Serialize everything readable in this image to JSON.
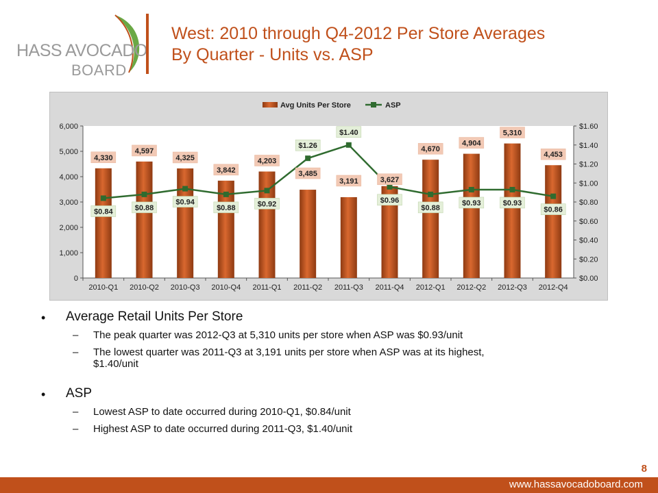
{
  "logo": {
    "line1": "HASS AVOCADO",
    "line2": "BOARD"
  },
  "title": {
    "line1": "West: 2010 through Q4-2012 Per Store Averages",
    "line2": "By Quarter - Units vs. ASP"
  },
  "chart_data": {
    "type": "bar",
    "categories": [
      "2010-Q1",
      "2010-Q2",
      "2010-Q3",
      "2010-Q4",
      "2011-Q1",
      "2011-Q2",
      "2011-Q3",
      "2011-Q4",
      "2012-Q1",
      "2012-Q2",
      "2012-Q3",
      "2012-Q4"
    ],
    "series": [
      {
        "name": "Avg Units Per Store",
        "type": "bar",
        "axis": "left",
        "values": [
          4330,
          4597,
          4325,
          3842,
          4203,
          3485,
          3191,
          3627,
          4670,
          4904,
          5310,
          4453
        ],
        "labels": [
          "4,330",
          "4,597",
          "4,325",
          "3,842",
          "4,203",
          "3,485",
          "3,191",
          "3,627",
          "4,670",
          "4,904",
          "5,310",
          "4,453"
        ]
      },
      {
        "name": "ASP",
        "type": "line",
        "axis": "right",
        "values": [
          0.84,
          0.88,
          0.94,
          0.88,
          0.92,
          1.26,
          1.4,
          0.96,
          0.88,
          0.93,
          0.93,
          0.86
        ],
        "labels": [
          "$0.84",
          "$0.88",
          "$0.94",
          "$0.88",
          "$0.92",
          "$1.26",
          "$1.40",
          "$0.96",
          "$0.88",
          "$0.93",
          "$0.93",
          "$0.86"
        ]
      }
    ],
    "y_left": {
      "ylim": [
        0,
        6000
      ],
      "ticks": [
        "0",
        "1,000",
        "2,000",
        "3,000",
        "4,000",
        "5,000",
        "6,000"
      ]
    },
    "y_right": {
      "ylim": [
        0,
        1.6
      ],
      "ticks": [
        "$0.00",
        "$0.20",
        "$0.40",
        "$0.60",
        "$0.80",
        "$1.00",
        "$1.20",
        "$1.40",
        "$1.60"
      ]
    },
    "legend_position": "top",
    "grid": false,
    "colors": {
      "bar": "#c0501b",
      "bar_label_bg": "#f2c9b5",
      "line": "#2f6b2f",
      "line_label_bg": "#e4efd9",
      "plot_bg": "#ffffff"
    }
  },
  "bullets": [
    {
      "text": "Average Retail Units Per Store",
      "subs": [
        "The peak quarter was 2012-Q3 at 5,310 units per store when ASP was $0.93/unit",
        "The lowest quarter was 2011-Q3 at 3,191 units per store when ASP was at its highest,",
        "$1.40/unit"
      ]
    },
    {
      "text": "ASP",
      "subs": [
        "Lowest ASP to date occurred during 2010-Q1, $0.84/unit",
        "Highest ASP to date occurred during 2011-Q3, $1.40/unit"
      ]
    }
  ],
  "page_number": "8",
  "footer_url": "www.hassavocadoboard.com"
}
